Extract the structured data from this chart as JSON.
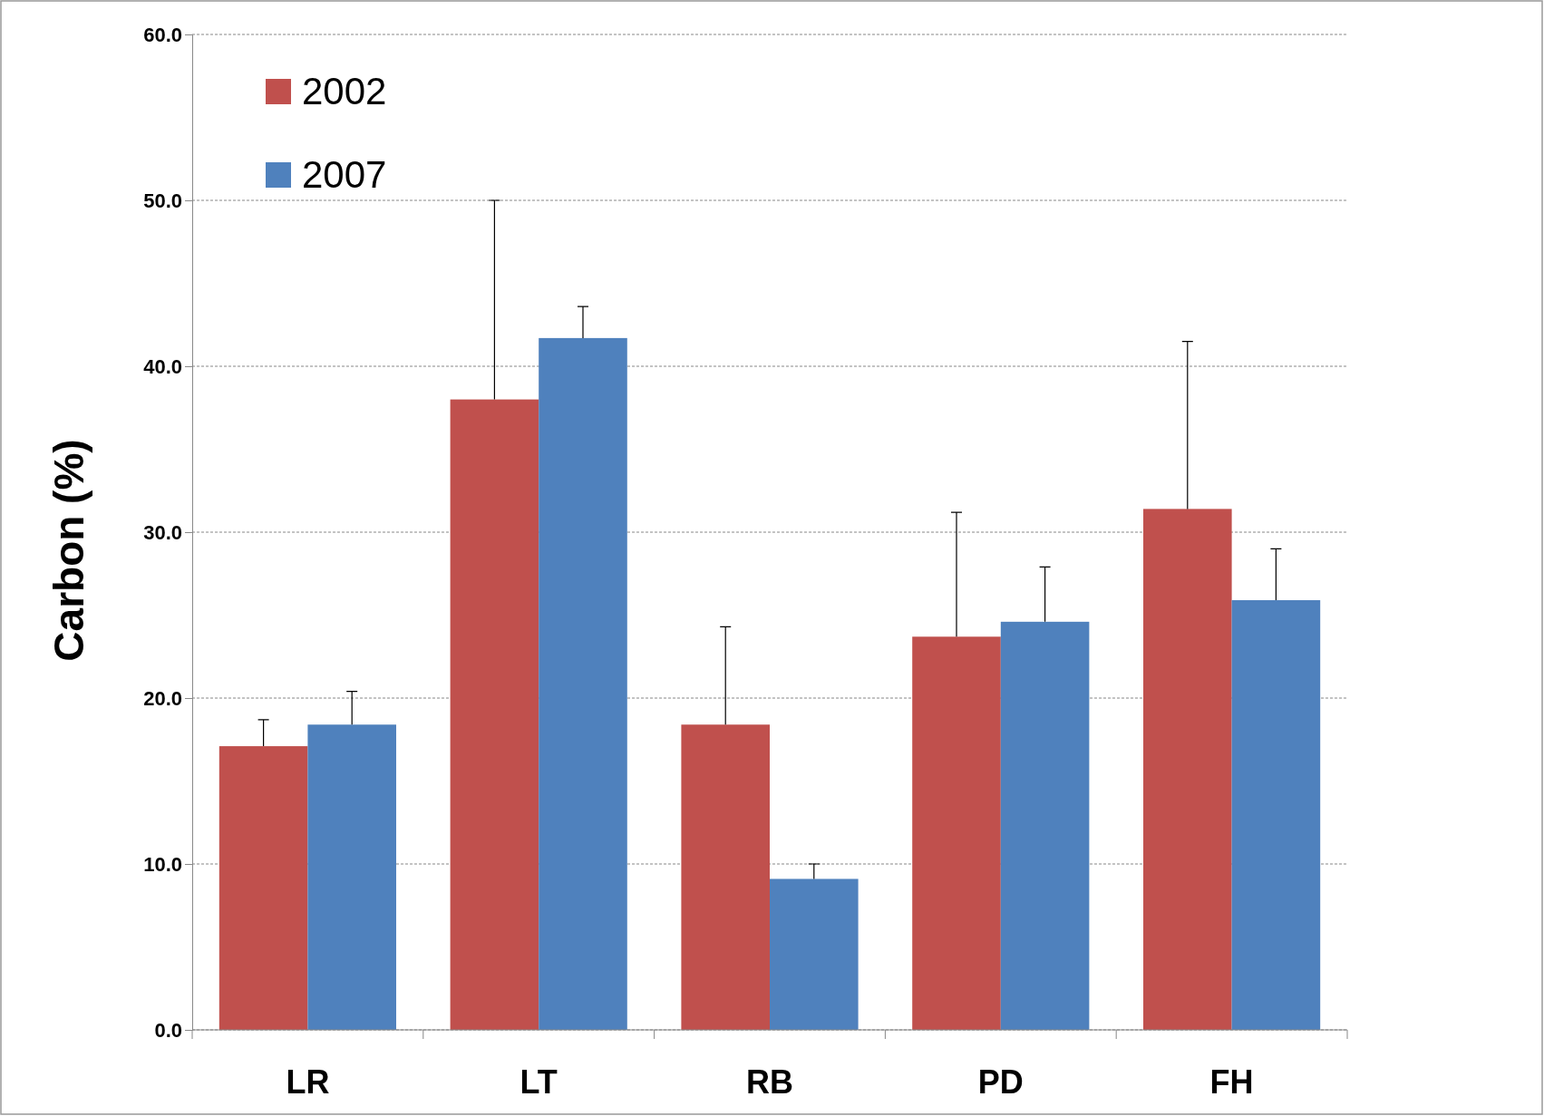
{
  "chart_data": {
    "type": "bar",
    "ylabel": "Carbon (%)",
    "categories": [
      "LR",
      "LT",
      "RB",
      "PD",
      "FH"
    ],
    "series": [
      {
        "name": "2002",
        "color": "#c0504d",
        "values": [
          17.1,
          38.0,
          18.4,
          23.7,
          31.4
        ],
        "errors": [
          [
            17.1,
            18.7
          ],
          [
            38.0,
            50.0
          ],
          [
            18.4,
            24.3
          ],
          [
            23.7,
            31.2
          ],
          [
            31.4,
            41.5
          ]
        ]
      },
      {
        "name": "2007",
        "color": "#4f81bd",
        "values": [
          18.4,
          41.7,
          9.1,
          24.6,
          25.9
        ],
        "errors": [
          [
            18.4,
            20.4
          ],
          [
            41.7,
            43.6
          ],
          [
            9.1,
            10.0
          ],
          [
            24.6,
            27.9
          ],
          [
            25.9,
            29.0
          ]
        ]
      }
    ],
    "ylim": [
      0,
      60
    ],
    "yticks": [
      {
        "value": 0,
        "label": "0.0"
      },
      {
        "value": 10,
        "label": "10.0"
      },
      {
        "value": 20,
        "label": "20.0"
      },
      {
        "value": 30,
        "label": "30.0"
      },
      {
        "value": 40,
        "label": "40.0"
      },
      {
        "value": 50,
        "label": "50.0"
      },
      {
        "value": 60,
        "label": "60.0"
      }
    ],
    "grid": "y",
    "legend": "top left"
  }
}
